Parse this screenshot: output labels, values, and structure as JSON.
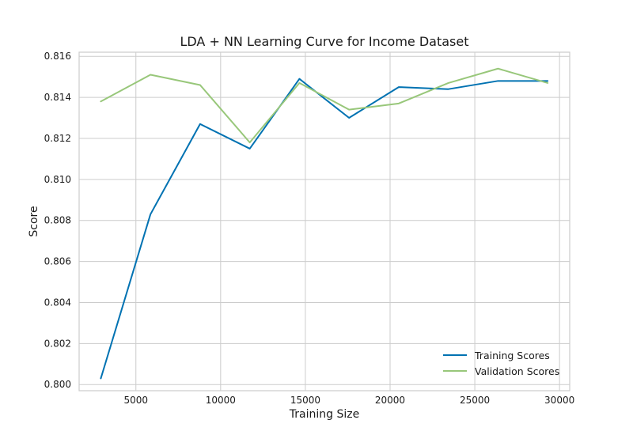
{
  "chart_data": {
    "type": "line",
    "title": "LDA + NN Learning Curve for Income Dataset",
    "xlabel": "Training Size",
    "ylabel": "Score",
    "xlim": [
      1650,
      30600
    ],
    "ylim": [
      0.7997,
      0.8162
    ],
    "xticks": [
      5000,
      10000,
      15000,
      20000,
      25000,
      30000
    ],
    "xtick_labels": [
      "5000",
      "10000",
      "15000",
      "20000",
      "25000",
      "30000"
    ],
    "yticks": [
      0.8,
      0.802,
      0.804,
      0.806,
      0.808,
      0.81,
      0.812,
      0.814,
      0.816
    ],
    "ytick_labels": [
      "0.800",
      "0.802",
      "0.804",
      "0.806",
      "0.808",
      "0.810",
      "0.812",
      "0.814",
      "0.816"
    ],
    "grid": true,
    "legend_position": "lower-right",
    "x": [
      2930,
      5860,
      8790,
      11720,
      14650,
      17580,
      20510,
      23440,
      26370,
      29300
    ],
    "series": [
      {
        "name": "Training Scores",
        "color": "#0072b2",
        "values": [
          0.8003,
          0.8083,
          0.8127,
          0.8115,
          0.8149,
          0.813,
          0.8145,
          0.8144,
          0.8148,
          0.8148
        ]
      },
      {
        "name": "Validation Scores",
        "color": "#98c77a",
        "values": [
          0.8138,
          0.8151,
          0.8146,
          0.8118,
          0.8147,
          0.8134,
          0.8137,
          0.8147,
          0.8154,
          0.8147
        ]
      }
    ]
  }
}
